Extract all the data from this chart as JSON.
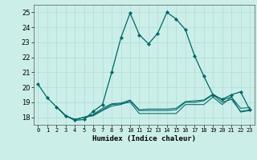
{
  "xlabel": "Humidex (Indice chaleur)",
  "bg_color": "#cceee8",
  "grid_color": "#aadddd",
  "line_color": "#006666",
  "xlim": [
    -0.5,
    23.5
  ],
  "ylim": [
    17.5,
    25.5
  ],
  "yticks": [
    18,
    19,
    20,
    21,
    22,
    23,
    24,
    25
  ],
  "xticks": [
    0,
    1,
    2,
    3,
    4,
    5,
    6,
    7,
    8,
    9,
    10,
    11,
    12,
    13,
    14,
    15,
    16,
    17,
    18,
    19,
    20,
    21,
    22,
    23
  ],
  "main_x": [
    0,
    1,
    2,
    3,
    4,
    5,
    6,
    7,
    8,
    9,
    10,
    11,
    12,
    13,
    14,
    15,
    16,
    17,
    18,
    19,
    20,
    21,
    22,
    23
  ],
  "main_y": [
    20.2,
    19.3,
    18.7,
    18.1,
    17.8,
    17.85,
    18.4,
    18.85,
    21.0,
    23.3,
    24.95,
    23.5,
    22.9,
    23.6,
    25.0,
    24.55,
    23.85,
    22.1,
    20.75,
    19.5,
    19.2,
    19.5,
    19.7,
    18.5
  ],
  "line2_x": [
    2,
    3,
    4,
    5,
    6,
    7,
    8,
    9,
    10,
    11,
    12,
    13,
    14,
    15,
    16,
    17,
    18,
    19,
    20,
    21,
    22,
    23
  ],
  "line2_y": [
    18.7,
    18.1,
    17.85,
    18.0,
    18.15,
    18.5,
    18.85,
    18.9,
    19.0,
    18.25,
    18.25,
    18.25,
    18.25,
    18.25,
    18.85,
    18.85,
    18.85,
    19.35,
    18.85,
    19.35,
    18.35,
    18.45
  ],
  "line3_x": [
    2,
    3,
    4,
    5,
    6,
    7,
    8,
    9,
    10,
    11,
    12,
    13,
    14,
    15,
    16,
    17,
    18,
    19,
    20,
    21,
    22,
    23
  ],
  "line3_y": [
    18.7,
    18.1,
    17.85,
    18.0,
    18.2,
    18.6,
    18.9,
    18.95,
    19.15,
    18.5,
    18.55,
    18.55,
    18.55,
    18.6,
    19.05,
    19.1,
    19.15,
    19.55,
    19.15,
    19.35,
    18.6,
    18.65
  ],
  "line4_x": [
    2,
    3,
    4,
    5,
    6,
    7,
    8,
    9,
    10,
    11,
    12,
    13,
    14,
    15,
    16,
    17,
    18,
    19,
    20,
    21,
    22,
    23
  ],
  "line4_y": [
    18.7,
    18.1,
    17.85,
    18.0,
    18.1,
    18.45,
    18.75,
    18.85,
    19.1,
    18.45,
    18.45,
    18.45,
    18.45,
    18.5,
    19.0,
    19.0,
    19.1,
    19.5,
    19.0,
    19.2,
    18.4,
    18.5
  ]
}
